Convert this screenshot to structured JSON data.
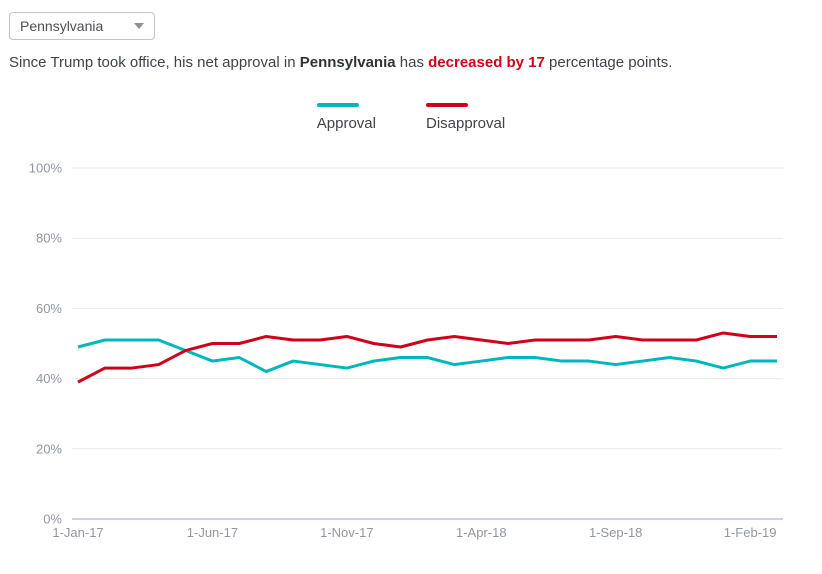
{
  "controls": {
    "state_selector": {
      "value": "Pennsylvania"
    }
  },
  "summary": {
    "prefix": "Since Trump took office, his net approval in ",
    "state": "Pennsylvania",
    "mid": " has ",
    "highlight": "decreased by 17",
    "suffix": " percentage points."
  },
  "legend": [
    {
      "label": "Approval",
      "color": "#00b7bd"
    },
    {
      "label": "Disapproval",
      "color": "#d0021b"
    }
  ],
  "colors": {
    "approval": "#00b7bd",
    "disapproval": "#d0021b",
    "grid": "#e9e9e9",
    "axis_line": "#ccd1e0",
    "axis_label": "#9097a0",
    "text": "#3e4449",
    "highlight": "#d0021b"
  },
  "chart_data": {
    "type": "line",
    "title": "",
    "xlabel": "",
    "ylabel": "",
    "ylim": [
      0,
      100
    ],
    "grid": true,
    "legend_position": "top-center",
    "x": [
      "1-Jan-17",
      "1-Feb-17",
      "1-Mar-17",
      "1-Apr-17",
      "1-May-17",
      "1-Jun-17",
      "1-Jul-17",
      "1-Aug-17",
      "1-Sep-17",
      "1-Oct-17",
      "1-Nov-17",
      "1-Dec-17",
      "1-Jan-18",
      "1-Feb-18",
      "1-Mar-18",
      "1-Apr-18",
      "1-May-18",
      "1-Jun-18",
      "1-Jul-18",
      "1-Aug-18",
      "1-Sep-18",
      "1-Oct-18",
      "1-Nov-18",
      "1-Dec-18",
      "1-Jan-19",
      "1-Feb-19",
      "1-Mar-19"
    ],
    "x_ticks": [
      {
        "index": 0,
        "label": "1-Jan-17"
      },
      {
        "index": 5,
        "label": "1-Jun-17"
      },
      {
        "index": 10,
        "label": "1-Nov-17"
      },
      {
        "index": 15,
        "label": "1-Apr-18"
      },
      {
        "index": 20,
        "label": "1-Sep-18"
      },
      {
        "index": 25,
        "label": "1-Feb-19"
      }
    ],
    "y_ticks": [
      {
        "value": 0,
        "label": "0%"
      },
      {
        "value": 20,
        "label": "20%"
      },
      {
        "value": 40,
        "label": "40%"
      },
      {
        "value": 60,
        "label": "60%"
      },
      {
        "value": 80,
        "label": "80%"
      },
      {
        "value": 100,
        "label": "100%"
      }
    ],
    "series": [
      {
        "name": "Approval",
        "color": "#00b7bd",
        "values": [
          49,
          51,
          51,
          51,
          48,
          45,
          46,
          42,
          45,
          44,
          43,
          45,
          46,
          46,
          44,
          45,
          46,
          46,
          45,
          45,
          44,
          45,
          46,
          45,
          43,
          45,
          45
        ]
      },
      {
        "name": "Disapproval",
        "color": "#d0021b",
        "values": [
          39,
          43,
          43,
          44,
          48,
          50,
          50,
          52,
          51,
          51,
          52,
          50,
          49,
          51,
          52,
          51,
          50,
          51,
          51,
          51,
          52,
          51,
          51,
          51,
          53,
          52,
          52
        ]
      }
    ]
  }
}
